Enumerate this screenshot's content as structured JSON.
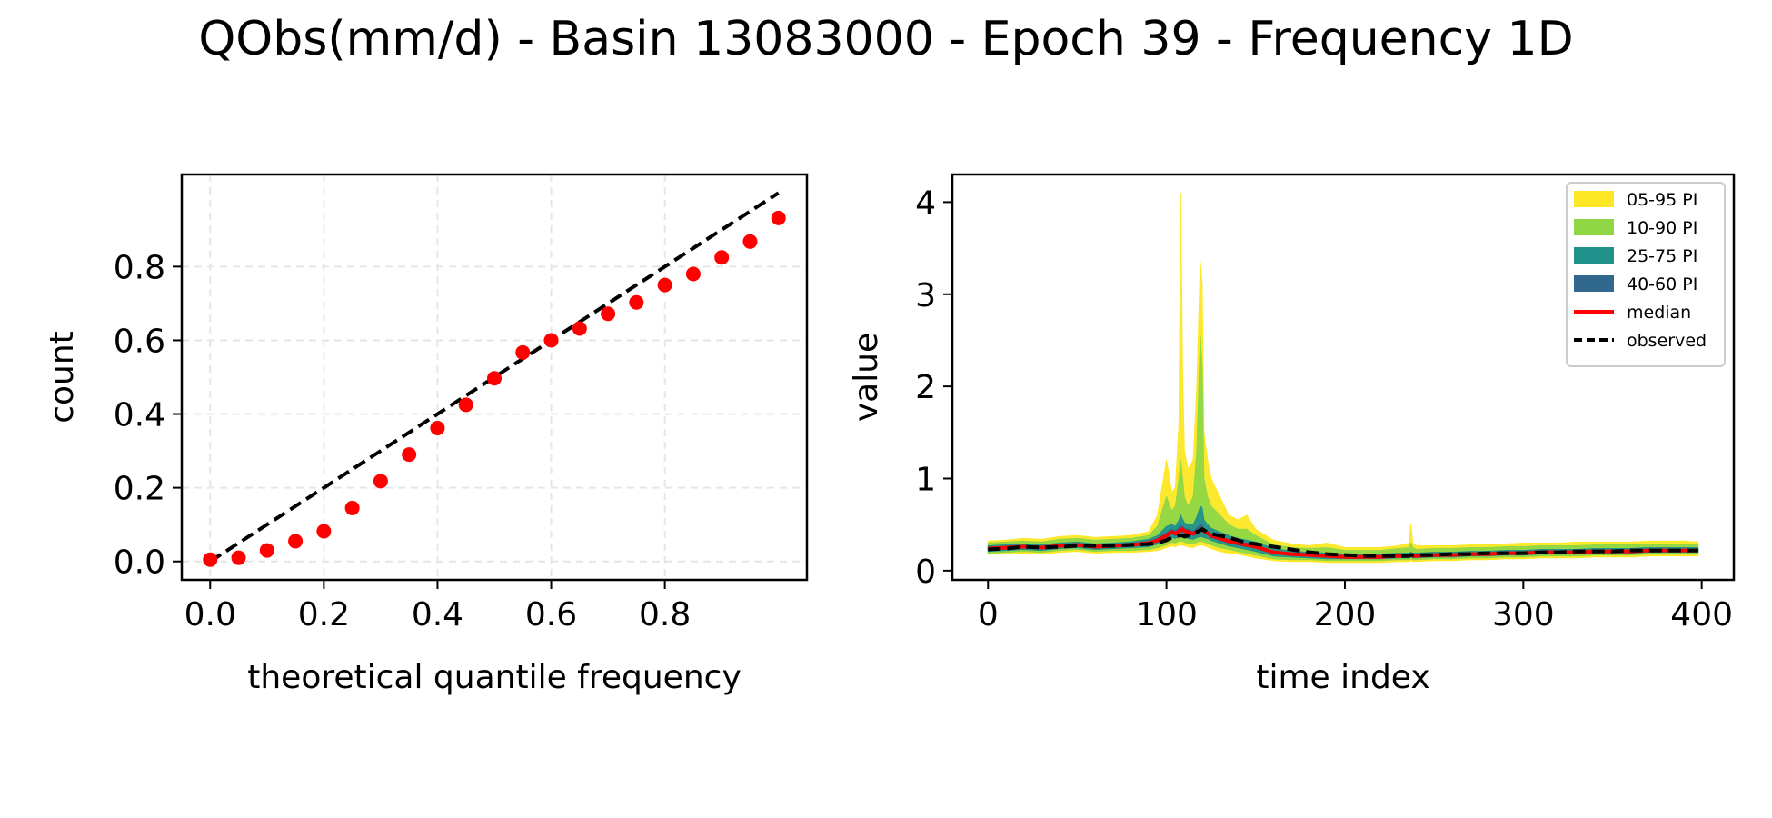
{
  "figure": {
    "title": "QObs(mm/d) - Basin 13083000 - Epoch 39 - Frequency 1D"
  },
  "chart_data": [
    {
      "type": "scatter",
      "xlabel": "theoretical quantile frequency",
      "ylabel": "count",
      "xlim": [
        -0.05,
        1.05
      ],
      "ylim": [
        -0.05,
        1.05
      ],
      "xticks": [
        0.0,
        0.2,
        0.4,
        0.6,
        0.8
      ],
      "xtick_labels": [
        "0.0",
        "0.2",
        "0.4",
        "0.6",
        "0.8"
      ],
      "yticks": [
        0.0,
        0.2,
        0.4,
        0.6,
        0.8
      ],
      "ytick_labels": [
        "0.0",
        "0.2",
        "0.4",
        "0.6",
        "0.8"
      ],
      "grid": true,
      "reference_line": {
        "x": [
          0,
          1
        ],
        "y": [
          0,
          1
        ],
        "color": "#000000",
        "style": "dashed"
      },
      "points": {
        "color": "#ff0000",
        "x": [
          0.0,
          0.05,
          0.1,
          0.15,
          0.2,
          0.25,
          0.3,
          0.35,
          0.4,
          0.45,
          0.5,
          0.55,
          0.6,
          0.65,
          0.7,
          0.75,
          0.8,
          0.85,
          0.9,
          0.95,
          1.0
        ],
        "y": [
          0.005,
          0.01,
          0.03,
          0.055,
          0.082,
          0.145,
          0.218,
          0.29,
          0.362,
          0.425,
          0.497,
          0.567,
          0.6,
          0.632,
          0.672,
          0.703,
          0.75,
          0.78,
          0.825,
          0.868,
          0.932
        ]
      }
    },
    {
      "type": "area",
      "xlabel": "time index",
      "ylabel": "value",
      "xlim": [
        -20,
        418
      ],
      "ylim": [
        -0.1,
        4.3
      ],
      "xticks": [
        0,
        100,
        200,
        300,
        400
      ],
      "xtick_labels": [
        "0",
        "100",
        "200",
        "300",
        "400"
      ],
      "yticks": [
        0,
        1,
        2,
        3,
        4
      ],
      "ytick_labels": [
        "0",
        "1",
        "2",
        "3",
        "4"
      ],
      "legend_position": "top-right",
      "legend": [
        {
          "label": "05-95 PI",
          "color": "#fde725",
          "kind": "patch"
        },
        {
          "label": "10-90 PI",
          "color": "#8fd744",
          "kind": "patch"
        },
        {
          "label": "25-75 PI",
          "color": "#21918c",
          "kind": "patch"
        },
        {
          "label": "40-60 PI",
          "color": "#31688e",
          "kind": "patch"
        },
        {
          "label": "median",
          "color": "#ff0000",
          "kind": "line"
        },
        {
          "label": "observed",
          "color": "#000000",
          "kind": "dashed"
        }
      ],
      "x": [
        0,
        10,
        20,
        30,
        40,
        50,
        60,
        70,
        80,
        90,
        95,
        100,
        103,
        105,
        107,
        108,
        109,
        110,
        112,
        115,
        117,
        119,
        120,
        121,
        123,
        125,
        130,
        135,
        140,
        145,
        150,
        160,
        170,
        180,
        190,
        200,
        210,
        220,
        230,
        236,
        237,
        238,
        240,
        250,
        260,
        270,
        280,
        290,
        300,
        310,
        320,
        330,
        340,
        350,
        360,
        370,
        380,
        390,
        398
      ],
      "median": [
        0.24,
        0.25,
        0.26,
        0.25,
        0.27,
        0.28,
        0.26,
        0.27,
        0.28,
        0.3,
        0.33,
        0.38,
        0.42,
        0.4,
        0.43,
        0.44,
        0.45,
        0.43,
        0.42,
        0.4,
        0.42,
        0.44,
        0.45,
        0.43,
        0.41,
        0.38,
        0.35,
        0.32,
        0.3,
        0.28,
        0.26,
        0.2,
        0.18,
        0.17,
        0.16,
        0.15,
        0.15,
        0.15,
        0.16,
        0.16,
        0.17,
        0.16,
        0.16,
        0.17,
        0.17,
        0.18,
        0.18,
        0.19,
        0.19,
        0.2,
        0.2,
        0.2,
        0.21,
        0.21,
        0.21,
        0.22,
        0.22,
        0.22,
        0.22
      ],
      "observed": [
        0.23,
        0.24,
        0.26,
        0.25,
        0.26,
        0.27,
        0.27,
        0.27,
        0.28,
        0.29,
        0.3,
        0.33,
        0.36,
        0.37,
        0.38,
        0.38,
        0.38,
        0.37,
        0.38,
        0.4,
        0.42,
        0.44,
        0.45,
        0.44,
        0.42,
        0.4,
        0.38,
        0.36,
        0.33,
        0.3,
        0.29,
        0.26,
        0.23,
        0.2,
        0.18,
        0.17,
        0.16,
        0.16,
        0.16,
        0.16,
        0.17,
        0.17,
        0.17,
        0.17,
        0.18,
        0.18,
        0.19,
        0.19,
        0.19,
        0.2,
        0.2,
        0.21,
        0.21,
        0.21,
        0.22,
        0.22,
        0.22,
        0.22,
        0.22
      ],
      "bands": [
        {
          "name": "05-95 PI",
          "color": "#fde725",
          "lower": [
            0.18,
            0.18,
            0.19,
            0.18,
            0.2,
            0.21,
            0.19,
            0.2,
            0.2,
            0.21,
            0.22,
            0.25,
            0.27,
            0.26,
            0.28,
            0.28,
            0.28,
            0.27,
            0.26,
            0.25,
            0.27,
            0.28,
            0.28,
            0.27,
            0.26,
            0.24,
            0.21,
            0.19,
            0.18,
            0.16,
            0.14,
            0.11,
            0.1,
            0.1,
            0.09,
            0.09,
            0.09,
            0.09,
            0.1,
            0.1,
            0.11,
            0.1,
            0.1,
            0.11,
            0.11,
            0.12,
            0.12,
            0.13,
            0.13,
            0.14,
            0.14,
            0.14,
            0.15,
            0.15,
            0.15,
            0.16,
            0.16,
            0.16,
            0.16
          ],
          "upper": [
            0.32,
            0.33,
            0.35,
            0.34,
            0.37,
            0.38,
            0.36,
            0.37,
            0.38,
            0.42,
            0.6,
            1.2,
            0.85,
            0.9,
            1.6,
            4.1,
            2.2,
            1.3,
            1.1,
            1.2,
            2.0,
            3.35,
            3.1,
            1.5,
            1.2,
            1.0,
            0.8,
            0.6,
            0.55,
            0.6,
            0.45,
            0.33,
            0.29,
            0.27,
            0.3,
            0.25,
            0.25,
            0.25,
            0.27,
            0.3,
            0.5,
            0.3,
            0.27,
            0.27,
            0.27,
            0.28,
            0.28,
            0.29,
            0.3,
            0.3,
            0.3,
            0.31,
            0.31,
            0.31,
            0.31,
            0.32,
            0.32,
            0.32,
            0.31
          ]
        },
        {
          "name": "10-90 PI",
          "color": "#8fd744",
          "lower": [
            0.19,
            0.2,
            0.21,
            0.2,
            0.22,
            0.23,
            0.21,
            0.22,
            0.22,
            0.23,
            0.25,
            0.28,
            0.31,
            0.3,
            0.32,
            0.32,
            0.32,
            0.31,
            0.3,
            0.29,
            0.31,
            0.32,
            0.32,
            0.31,
            0.3,
            0.28,
            0.25,
            0.23,
            0.21,
            0.19,
            0.17,
            0.13,
            0.12,
            0.12,
            0.11,
            0.11,
            0.11,
            0.11,
            0.12,
            0.12,
            0.13,
            0.12,
            0.12,
            0.13,
            0.13,
            0.14,
            0.14,
            0.15,
            0.15,
            0.16,
            0.16,
            0.16,
            0.17,
            0.17,
            0.17,
            0.18,
            0.18,
            0.18,
            0.18
          ],
          "upper": [
            0.3,
            0.31,
            0.32,
            0.31,
            0.34,
            0.35,
            0.33,
            0.34,
            0.35,
            0.38,
            0.48,
            0.8,
            0.65,
            0.7,
            1.0,
            1.2,
            1.0,
            0.8,
            0.7,
            0.8,
            1.3,
            2.55,
            2.2,
            1.0,
            0.8,
            0.7,
            0.6,
            0.5,
            0.45,
            0.45,
            0.38,
            0.28,
            0.25,
            0.24,
            0.25,
            0.22,
            0.22,
            0.22,
            0.24,
            0.25,
            0.3,
            0.25,
            0.23,
            0.24,
            0.24,
            0.25,
            0.25,
            0.26,
            0.26,
            0.27,
            0.27,
            0.27,
            0.28,
            0.28,
            0.28,
            0.29,
            0.29,
            0.29,
            0.28
          ]
        },
        {
          "name": "25-75 PI",
          "color": "#21918c",
          "lower": [
            0.21,
            0.22,
            0.23,
            0.22,
            0.24,
            0.25,
            0.23,
            0.24,
            0.25,
            0.26,
            0.29,
            0.33,
            0.36,
            0.35,
            0.37,
            0.37,
            0.37,
            0.36,
            0.35,
            0.34,
            0.36,
            0.37,
            0.37,
            0.36,
            0.35,
            0.33,
            0.3,
            0.27,
            0.25,
            0.23,
            0.21,
            0.16,
            0.15,
            0.14,
            0.13,
            0.13,
            0.13,
            0.13,
            0.14,
            0.14,
            0.15,
            0.14,
            0.14,
            0.15,
            0.15,
            0.16,
            0.16,
            0.17,
            0.17,
            0.18,
            0.18,
            0.18,
            0.19,
            0.19,
            0.19,
            0.2,
            0.2,
            0.2,
            0.2
          ],
          "upper": [
            0.27,
            0.28,
            0.29,
            0.28,
            0.3,
            0.31,
            0.29,
            0.3,
            0.31,
            0.34,
            0.38,
            0.48,
            0.5,
            0.48,
            0.55,
            0.6,
            0.56,
            0.52,
            0.5,
            0.5,
            0.58,
            0.7,
            0.68,
            0.55,
            0.5,
            0.46,
            0.42,
            0.38,
            0.35,
            0.33,
            0.31,
            0.24,
            0.21,
            0.2,
            0.19,
            0.18,
            0.18,
            0.18,
            0.19,
            0.19,
            0.2,
            0.19,
            0.19,
            0.2,
            0.2,
            0.21,
            0.21,
            0.22,
            0.22,
            0.23,
            0.23,
            0.23,
            0.24,
            0.24,
            0.24,
            0.25,
            0.25,
            0.25,
            0.25
          ]
        },
        {
          "name": "40-60 PI",
          "color": "#31688e",
          "lower": [
            0.23,
            0.24,
            0.25,
            0.24,
            0.26,
            0.27,
            0.25,
            0.26,
            0.27,
            0.29,
            0.31,
            0.36,
            0.4,
            0.38,
            0.41,
            0.42,
            0.42,
            0.41,
            0.4,
            0.38,
            0.4,
            0.42,
            0.43,
            0.41,
            0.39,
            0.36,
            0.33,
            0.3,
            0.28,
            0.26,
            0.24,
            0.19,
            0.17,
            0.16,
            0.15,
            0.14,
            0.14,
            0.14,
            0.15,
            0.15,
            0.16,
            0.15,
            0.15,
            0.16,
            0.16,
            0.17,
            0.17,
            0.18,
            0.18,
            0.19,
            0.19,
            0.19,
            0.2,
            0.2,
            0.2,
            0.21,
            0.21,
            0.21,
            0.21
          ],
          "upper": [
            0.25,
            0.26,
            0.27,
            0.26,
            0.28,
            0.29,
            0.27,
            0.28,
            0.29,
            0.31,
            0.35,
            0.41,
            0.45,
            0.43,
            0.47,
            0.49,
            0.48,
            0.46,
            0.45,
            0.43,
            0.46,
            0.5,
            0.5,
            0.46,
            0.43,
            0.4,
            0.37,
            0.34,
            0.32,
            0.3,
            0.28,
            0.21,
            0.19,
            0.18,
            0.17,
            0.16,
            0.16,
            0.16,
            0.17,
            0.17,
            0.18,
            0.17,
            0.17,
            0.18,
            0.18,
            0.19,
            0.19,
            0.2,
            0.2,
            0.21,
            0.21,
            0.21,
            0.22,
            0.22,
            0.22,
            0.23,
            0.23,
            0.23,
            0.23
          ]
        }
      ]
    }
  ]
}
